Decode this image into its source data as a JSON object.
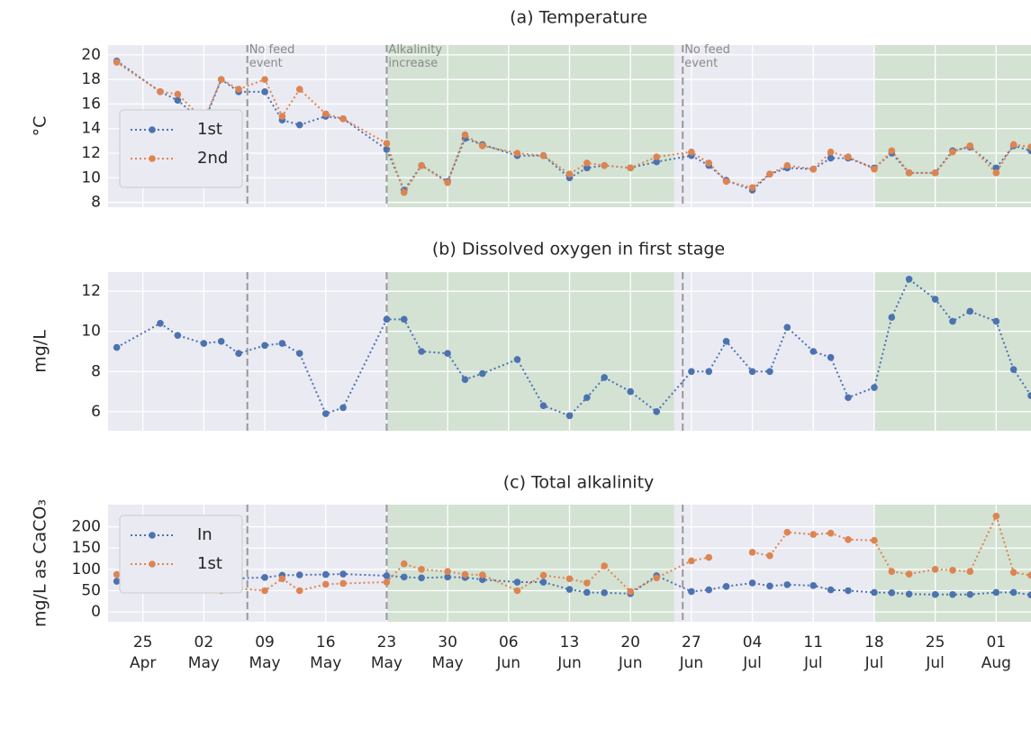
{
  "chart_data": [
    {
      "type": "line",
      "title": "(a) Temperature",
      "ylabel": "°C",
      "x": [
        "04-22",
        "04-27",
        "04-29",
        "05-02",
        "05-04",
        "05-06",
        "05-09",
        "05-11",
        "05-13",
        "05-16",
        "05-18",
        "05-23",
        "05-25",
        "05-27",
        "05-30",
        "06-01",
        "06-03",
        "06-07",
        "06-10",
        "06-13",
        "06-15",
        "06-17",
        "06-20",
        "06-23",
        "06-27",
        "06-29",
        "07-01",
        "07-04",
        "07-06",
        "07-08",
        "07-11",
        "07-13",
        "07-15",
        "07-18",
        "07-20",
        "07-22",
        "07-25",
        "07-27",
        "07-29",
        "08-01",
        "08-03",
        "08-05"
      ],
      "series": [
        {
          "name": "1st",
          "color": "#4c72b0",
          "values": [
            19.5,
            17,
            16.3,
            14.5,
            18,
            17,
            17,
            14.7,
            14.3,
            15,
            14.8,
            12.3,
            9,
            11,
            9.7,
            13.2,
            12.7,
            11.8,
            11.8,
            10,
            10.8,
            11,
            10.8,
            11.3,
            11.8,
            11,
            9.8,
            9,
            10.3,
            10.8,
            10.7,
            11.6,
            11.6,
            10.8,
            12,
            10.4,
            10.4,
            12.2,
            12.5,
            10.8,
            12.6,
            12.2
          ]
        },
        {
          "name": "2nd",
          "color": "#dd8452",
          "values": [
            19.4,
            17,
            16.8,
            14.7,
            18,
            17.2,
            18,
            15,
            17.2,
            15.2,
            14.8,
            12.8,
            8.8,
            11,
            9.6,
            13.5,
            12.6,
            12,
            11.8,
            10.3,
            11.2,
            11,
            10.8,
            11.7,
            12.1,
            11.2,
            9.7,
            9.2,
            10.3,
            11,
            10.7,
            12.1,
            11.7,
            10.7,
            12.2,
            10.4,
            10.4,
            12.1,
            12.6,
            10.4,
            12.7,
            12.5
          ]
        }
      ],
      "xlim": [
        "04-21",
        "08-05"
      ],
      "ylim": [
        7.6,
        20.8
      ],
      "yticks": [
        8,
        10,
        12,
        14,
        16,
        18,
        20
      ],
      "grid": true,
      "legend": "lower left",
      "spans": [
        {
          "from": "05-23",
          "to": "06-25",
          "color": "#d3e2d3"
        },
        {
          "from": "07-18",
          "to": "08-05",
          "color": "#d3e2d3"
        }
      ],
      "vlines": [
        {
          "x": "05-07",
          "label": "No feed event"
        },
        {
          "x": "05-23",
          "label": "Alkalinity increase"
        },
        {
          "x": "06-26",
          "label": "No feed event"
        }
      ]
    },
    {
      "type": "line",
      "title": "(b) Dissolved oxygen in first stage",
      "ylabel": "mg/L",
      "x": [
        "04-22",
        "04-27",
        "04-29",
        "05-02",
        "05-04",
        "05-06",
        "05-09",
        "05-11",
        "05-13",
        "05-16",
        "05-18",
        "05-23",
        "05-25",
        "05-27",
        "05-30",
        "06-01",
        "06-03",
        "06-07",
        "06-10",
        "06-13",
        "06-15",
        "06-17",
        "06-20",
        "06-23",
        "06-27",
        "06-29",
        "07-01",
        "07-04",
        "07-06",
        "07-08",
        "07-11",
        "07-13",
        "07-15",
        "07-18",
        "07-20",
        "07-22",
        "07-25",
        "07-27",
        "07-29",
        "08-01",
        "08-03",
        "08-05"
      ],
      "series": [
        {
          "name": "1st",
          "color": "#4c72b0",
          "values": [
            9.2,
            10.4,
            9.8,
            9.4,
            9.5,
            8.9,
            9.3,
            9.4,
            8.9,
            5.9,
            6.2,
            10.6,
            10.6,
            9,
            8.9,
            7.6,
            7.9,
            8.6,
            6.3,
            5.8,
            6.7,
            7.7,
            7,
            6,
            8,
            8,
            9.5,
            8,
            8,
            10.2,
            9,
            8.7,
            6.7,
            7.2,
            10.7,
            12.6,
            11.6,
            10.5,
            11,
            10.5,
            8.1,
            6.8
          ]
        }
      ],
      "xlim": [
        "04-21",
        "08-05"
      ],
      "ylim": [
        5.05,
        12.95
      ],
      "yticks": [
        6,
        8,
        10,
        12
      ],
      "grid": true,
      "spans": [
        {
          "from": "05-23",
          "to": "06-25",
          "color": "#d3e2d3"
        },
        {
          "from": "07-18",
          "to": "08-05",
          "color": "#d3e2d3"
        }
      ],
      "vlines": [
        {
          "x": "05-07"
        },
        {
          "x": "05-23"
        },
        {
          "x": "06-26"
        }
      ]
    },
    {
      "type": "line",
      "title": "(c) Total alkalinity",
      "ylabel": "mg/L as CaCO₃",
      "x": [
        "04-22",
        "04-27",
        "04-29",
        "05-02",
        "05-04",
        "05-06",
        "05-09",
        "05-11",
        "05-13",
        "05-16",
        "05-18",
        "05-23",
        "05-25",
        "05-27",
        "05-30",
        "06-01",
        "06-03",
        "06-07",
        "06-10",
        "06-13",
        "06-15",
        "06-17",
        "06-20",
        "06-23",
        "06-27",
        "06-29",
        "07-01",
        "07-04",
        "07-06",
        "07-08",
        "07-11",
        "07-13",
        "07-15",
        "07-18",
        "07-20",
        "07-22",
        "07-25",
        "07-27",
        "07-29",
        "08-01",
        "08-03",
        "08-05"
      ],
      "series": [
        {
          "name": "In",
          "color": "#4c72b0",
          "values": [
            72,
            75,
            76,
            78,
            80,
            79,
            81,
            86,
            87,
            88,
            89,
            85,
            82,
            80,
            82,
            81,
            76,
            70,
            70,
            53,
            46,
            45,
            43,
            85,
            48,
            52,
            60,
            68,
            61,
            64,
            62,
            52,
            50,
            46,
            45,
            42,
            41,
            41,
            41,
            46,
            46,
            40
          ]
        },
        {
          "name": "1st",
          "color": "#dd8452",
          "values": [
            88,
            73,
            69,
            64,
            50,
            55,
            50,
            78,
            50,
            65,
            67,
            70,
            113,
            100,
            95,
            88,
            87,
            50,
            86,
            78,
            68,
            108,
            48,
            80,
            120,
            128,
            null,
            140,
            132,
            187,
            182,
            185,
            170,
            168,
            95,
            89,
            100,
            98,
            95,
            225,
            93,
            86
          ]
        }
      ],
      "xlim": [
        "04-21",
        "08-05"
      ],
      "ylim": [
        -23,
        252
      ],
      "yticks": [
        0,
        50,
        100,
        150,
        200
      ],
      "grid": true,
      "legend": "upper left",
      "xticks": [
        {
          "value": "04-25",
          "label": "25 Apr"
        },
        {
          "value": "05-02",
          "label": "02 May"
        },
        {
          "value": "05-09",
          "label": "09 May"
        },
        {
          "value": "05-16",
          "label": "16 May"
        },
        {
          "value": "05-23",
          "label": "23 May"
        },
        {
          "value": "05-30",
          "label": "30 May"
        },
        {
          "value": "06-06",
          "label": "06 Jun"
        },
        {
          "value": "06-13",
          "label": "13 Jun"
        },
        {
          "value": "06-20",
          "label": "20 Jun"
        },
        {
          "value": "06-27",
          "label": "27 Jun"
        },
        {
          "value": "07-04",
          "label": "04 Jul"
        },
        {
          "value": "07-11",
          "label": "11 Jul"
        },
        {
          "value": "07-18",
          "label": "18 Jul"
        },
        {
          "value": "07-25",
          "label": "25 Jul"
        },
        {
          "value": "08-01",
          "label": "01 Aug"
        }
      ],
      "spans": [
        {
          "from": "05-23",
          "to": "06-25",
          "color": "#d3e2d3"
        },
        {
          "from": "07-18",
          "to": "08-05",
          "color": "#d3e2d3"
        }
      ],
      "vlines": [
        {
          "x": "05-07"
        },
        {
          "x": "05-23"
        },
        {
          "x": "06-26"
        }
      ]
    }
  ]
}
